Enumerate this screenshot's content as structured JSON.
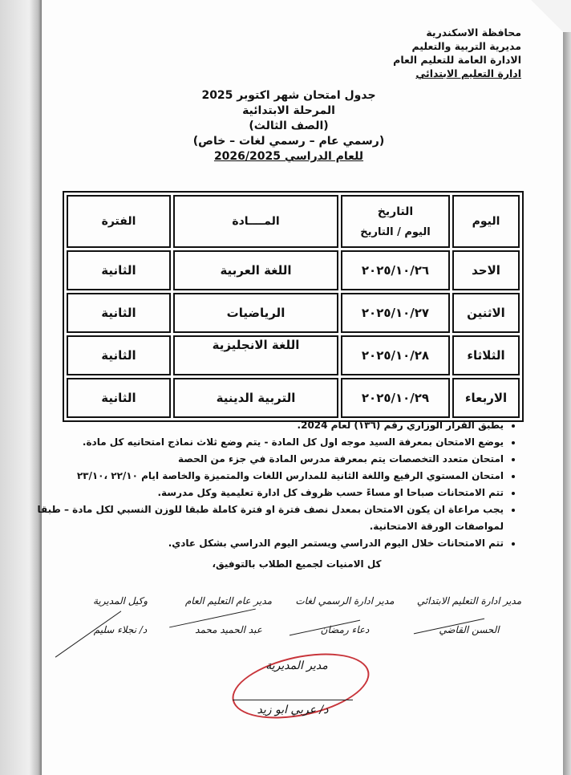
{
  "header": {
    "lines": [
      "محافظة الاسكندرية",
      "مديرية التربية والتعليم",
      "الادارة العامة للتعليم العام",
      "ادارة التعليم الابتدائي"
    ]
  },
  "title": {
    "line1": "جدول امتحان شهر اكتوبر 2025",
    "line2": "المرحلة الابتدائية",
    "line3": "(الصف الثالث)",
    "line4": "(رسمي عام – رسمي لغات – خاص)",
    "line5": "للعام الدراسي 2026/2025"
  },
  "table": {
    "headers": {
      "day": "اليوم",
      "date": "التاريخ",
      "date_sub": "اليوم / التاريخ",
      "subject": "المــــادة",
      "period": "الفترة"
    },
    "rows": [
      {
        "day": "الاحد",
        "date": "٢٠٢٥/١٠/٢٦",
        "subject": "اللغة العربية",
        "period": "الثانية"
      },
      {
        "day": "الاثنين",
        "date": "٢٠٢٥/١٠/٢٧",
        "subject": "الرياضيات",
        "period": "الثانية"
      },
      {
        "day": "الثلاثاء",
        "date": "٢٠٢٥/١٠/٢٨",
        "subject": "اللغة الانجليزية",
        "period": "الثانية"
      },
      {
        "day": "الاربعاء",
        "date": "٢٠٢٥/١٠/٢٩",
        "subject": "التربية الدينية",
        "period": "الثانية"
      }
    ]
  },
  "notes": [
    "يطبق القرار الوزاري رقم (١٣٦) لعام 2024.",
    "يوضع الامتحان بمعرفة السيد موجه اول كل المادة - يتم وضع ثلاث نماذج امتحانيه كل مادة.",
    "امتحان   متعدد التخصصات يتم بمعرفة مدرس المادة في جزء من الحصة",
    "امتحان المستوي الرفيع واللغة الثانية للمدارس اللغات والمتميزة والخاصة ايام ٢٢/١٠ ،٢٣/١٠",
    "تتم الامتحانات صباحا او مساءً حسب ظروف كل ادارة تعليمية وكل مدرسة.",
    "يجب مراعاة ان يكون الامتحان بمعدل نصف فترة او فترة كاملة طبقا للوزن النسبي لكل مادة – طبقا لمواصفات الورقة الامتحانية.",
    "تتم الامتحانات خلال اليوم الدراسي ويستمر اليوم الدراسي بشكل عادي."
  ],
  "closing": "كل الامنيات لجميع الطلاب بالتوفيق،",
  "signatures": [
    {
      "title": "مدير ادارة التعليم الابتدائي",
      "name": "الحسن القاضي"
    },
    {
      "title": "مدير ادارة الرسمي لغات",
      "name": "دعاء رمضان"
    },
    {
      "title": "مدير عام التعليم العام",
      "name": "عبد الحميد محمد"
    },
    {
      "title": "وكيل المديرية",
      "name": "د/ نجلاء سليم"
    }
  ],
  "director": {
    "title": "مدير المديرية",
    "name": "د/ عربي ابو زيد"
  },
  "colors": {
    "stamp": "#c8343a",
    "ink": "#111111"
  }
}
